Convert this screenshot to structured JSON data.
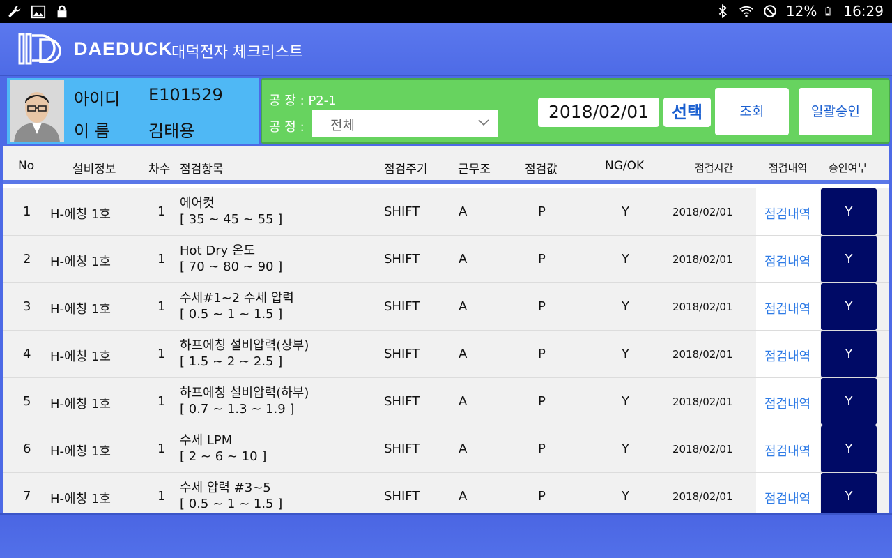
{
  "statusbar": {
    "left_icons": [
      "wrench-icon",
      "image-icon",
      "lock-icon"
    ],
    "right_icons": [
      "bluetooth-icon",
      "wifi-icon",
      "dnd-icon",
      "battery-icon"
    ],
    "battery": "12%",
    "time": "16:29"
  },
  "app": {
    "brand": "DAEDUCK",
    "title": "대덕전자 체크리스트",
    "accent": "#4e6be6"
  },
  "user": {
    "id_label": "아이디",
    "id_value": "E101529",
    "name_label": "이 름",
    "name_value": "김태용"
  },
  "filter": {
    "factory_label": "공 장 : ",
    "factory_value": "P2-1",
    "process_label": "공 정 :",
    "process_value": "전체",
    "date": "2018/02/01",
    "select_label": "선택",
    "query_label": "조회",
    "approve_all_label": "일괄승인"
  },
  "table": {
    "headers": {
      "no": "No",
      "equipment": "설비정보",
      "round": "차수",
      "item": "점검항목",
      "cycle": "점검주기",
      "shift": "근무조",
      "value": "점검값",
      "ngok": "NG/OK",
      "time": "점검시간",
      "detail": "점검내역",
      "approve": "승인여부"
    },
    "rows": [
      {
        "no": "1",
        "equipment": "H-에칭 1호",
        "round": "1",
        "item": "에어컷",
        "range": "[ 35 ~ 45 ~ 55 ]",
        "cycle": "SHIFT",
        "shift": "A",
        "value": "P",
        "ngok": "Y",
        "time": "2018/02/01",
        "detail": "점검내역",
        "approve": "Y"
      },
      {
        "no": "2",
        "equipment": "H-에칭 1호",
        "round": "1",
        "item": "Hot Dry 온도",
        "range": "[ 70 ~ 80 ~ 90 ]",
        "cycle": "SHIFT",
        "shift": "A",
        "value": "P",
        "ngok": "Y",
        "time": "2018/02/01",
        "detail": "점검내역",
        "approve": "Y"
      },
      {
        "no": "3",
        "equipment": "H-에칭 1호",
        "round": "1",
        "item": "수세#1~2 수세 압력",
        "range": "[ 0.5 ~ 1 ~ 1.5 ]",
        "cycle": "SHIFT",
        "shift": "A",
        "value": "P",
        "ngok": "Y",
        "time": "2018/02/01",
        "detail": "점검내역",
        "approve": "Y"
      },
      {
        "no": "4",
        "equipment": "H-에칭 1호",
        "round": "1",
        "item": "하프에칭 설비압력(상부)",
        "range": "[ 1.5 ~ 2 ~ 2.5 ]",
        "cycle": "SHIFT",
        "shift": "A",
        "value": "P",
        "ngok": "Y",
        "time": "2018/02/01",
        "detail": "점검내역",
        "approve": "Y"
      },
      {
        "no": "5",
        "equipment": "H-에칭 1호",
        "round": "1",
        "item": "하프에칭 설비압력(하부)",
        "range": "[ 0.7 ~ 1.3 ~ 1.9 ]",
        "cycle": "SHIFT",
        "shift": "A",
        "value": "P",
        "ngok": "Y",
        "time": "2018/02/01",
        "detail": "점검내역",
        "approve": "Y"
      },
      {
        "no": "6",
        "equipment": "H-에칭 1호",
        "round": "1",
        "item": "수세 LPM",
        "range": "[ 2 ~ 6 ~ 10 ]",
        "cycle": "SHIFT",
        "shift": "A",
        "value": "P",
        "ngok": "Y",
        "time": "2018/02/01",
        "detail": "점검내역",
        "approve": "Y"
      },
      {
        "no": "7",
        "equipment": "H-에칭 1호",
        "round": "1",
        "item": "수세 압력 #3~5",
        "range": "[ 0.5 ~ 1 ~ 1.5 ]",
        "cycle": "SHIFT",
        "shift": "A",
        "value": "P",
        "ngok": "Y",
        "time": "2018/02/01",
        "detail": "점검내역",
        "approve": "Y"
      }
    ]
  }
}
